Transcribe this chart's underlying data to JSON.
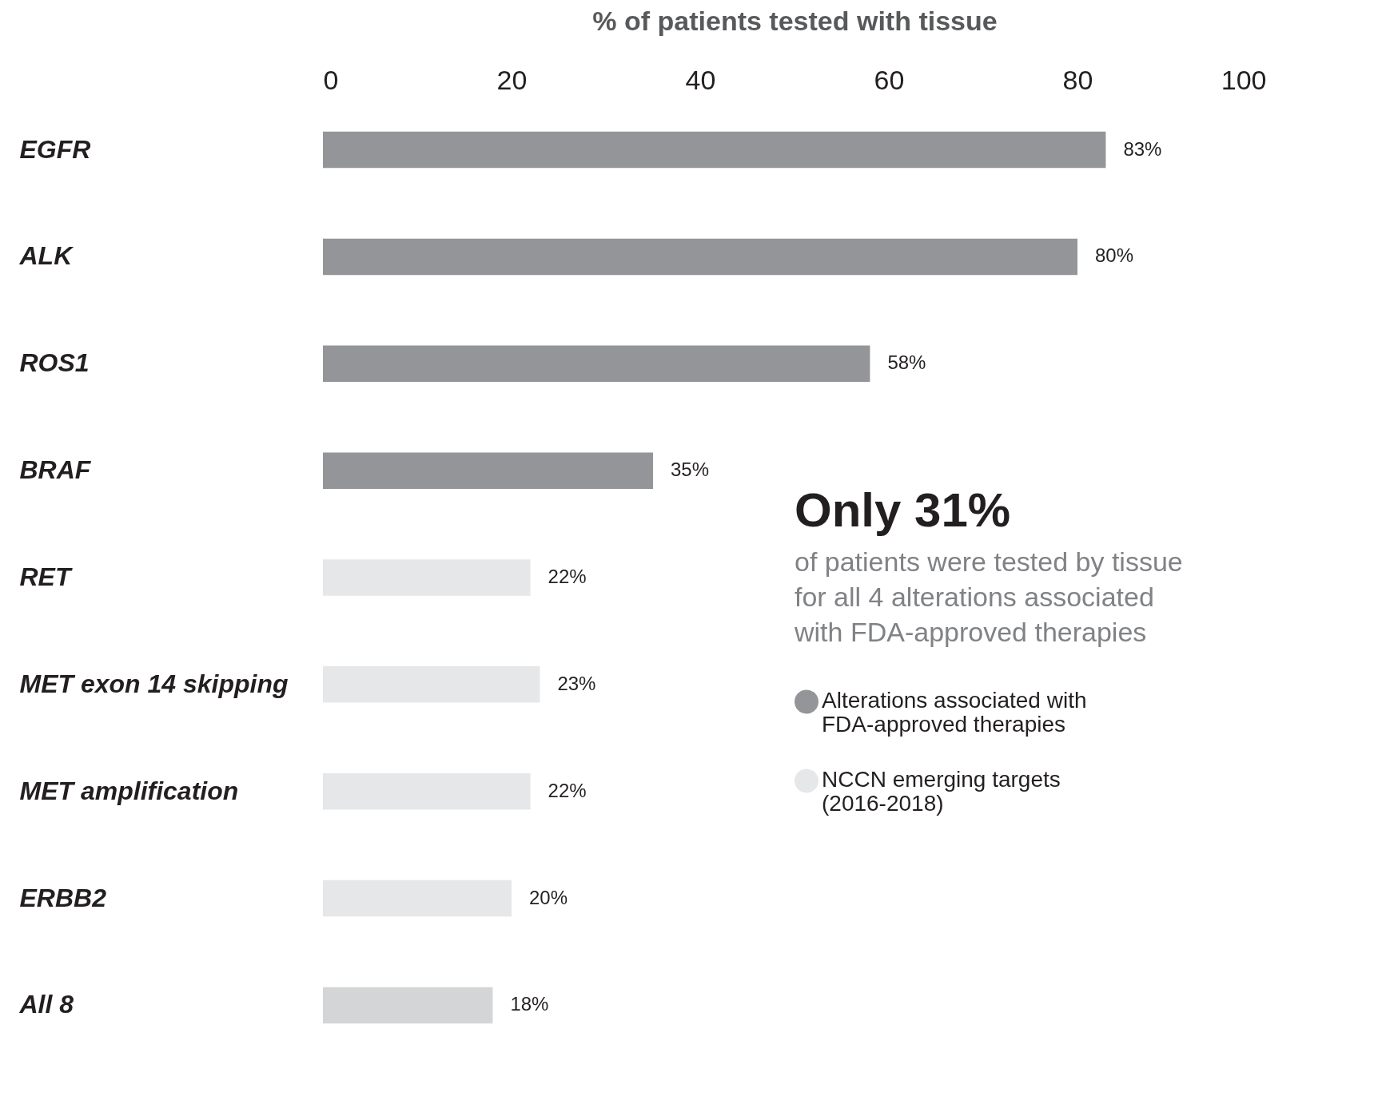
{
  "chart_data": {
    "type": "bar",
    "orientation": "horizontal",
    "xlabel": "% of patients tested with tissue",
    "categories": [
      "EGFR",
      "ALK",
      "ROS1",
      "BRAF",
      "RET",
      "MET exon 14 skipping",
      "MET amplification",
      "ERBB2",
      "All 8"
    ],
    "series": [
      {
        "name": "Alterations associated with FDA-approved therapies",
        "color": "#939598",
        "values": [
          83,
          80,
          58,
          35,
          null,
          null,
          null,
          null,
          null
        ],
        "value_labels": [
          "83%",
          "80%",
          "58%",
          "35%",
          null,
          null,
          null,
          null,
          null
        ]
      },
      {
        "name": "NCCN emerging targets (2016-2018)",
        "color": "#e6e7e8",
        "values": [
          null,
          null,
          null,
          null,
          22,
          23,
          22,
          20,
          null
        ],
        "value_labels": [
          null,
          null,
          null,
          null,
          "22%",
          "23%",
          "22%",
          "20%",
          null
        ]
      },
      {
        "color": "#d4d5d6",
        "values": [
          null,
          null,
          null,
          null,
          null,
          null,
          null,
          null,
          18
        ],
        "value_labels": [
          null,
          null,
          null,
          null,
          null,
          null,
          null,
          null,
          "18%"
        ]
      }
    ],
    "xlim": [
      0,
      100
    ],
    "xticks": [
      0,
      20,
      40,
      60,
      80,
      100
    ],
    "grid": false,
    "legend": "right",
    "annotations": [
      "Only 31%",
      "of patients were tested by tissue for all 4 alterations associated with FDA-approved therapies"
    ]
  }
}
